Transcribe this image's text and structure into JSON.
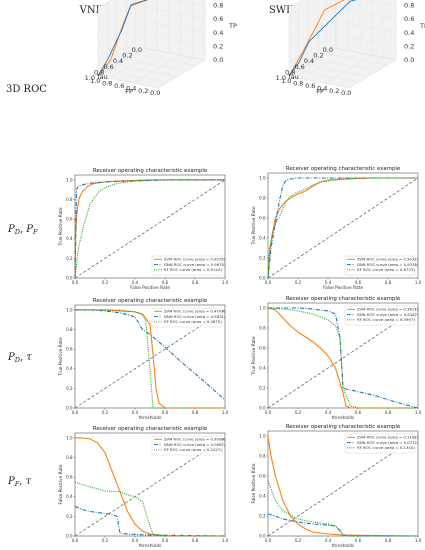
{
  "columns": [
    "VNIR (mean–variance)",
    "SWIR (mean–variance)"
  ],
  "rows": [
    {
      "label": "3D ROC",
      "italic": false
    },
    {
      "label": "P_D, P_F",
      "italic": true
    },
    {
      "label": "P_D, τ",
      "italic": true
    },
    {
      "label": "P_F, τ",
      "italic": true
    }
  ],
  "colors": {
    "svm": "#ff7f0e",
    "dnn": "#1f77b4",
    "rf": "#2ca02c",
    "diag": "#555555"
  },
  "axis_3d": {
    "tau": "Tau",
    "fp": "FP",
    "tp": "TP",
    "ticks": [
      "0.0",
      "0.2",
      "0.4",
      "0.6",
      "0.8",
      "1.0"
    ]
  },
  "ticks": [
    "0.0",
    "0.2",
    "0.4",
    "0.6",
    "0.8",
    "1.0"
  ],
  "chart_data": [
    {
      "id": "vnir_pdpf",
      "type": "line",
      "title": "Receiver operating characteristic example",
      "xlabel": "False Positive Rate",
      "ylabel": "True Positive Rate",
      "xlim": [
        0,
        1
      ],
      "ylim": [
        0,
        1.05
      ],
      "legend": "bottom-right",
      "series": [
        {
          "name": "SVM ROC curve (area = 0.9579)",
          "key": "svm",
          "dash": "solid",
          "x": [
            0,
            0.005,
            0.01,
            0.02,
            0.03,
            0.05,
            0.08,
            0.12,
            0.2,
            0.3,
            0.5,
            0.7,
            1.0
          ],
          "y": [
            0,
            0.45,
            0.62,
            0.75,
            0.82,
            0.88,
            0.93,
            0.96,
            0.98,
            0.99,
            1.0,
            1.0,
            1.0
          ]
        },
        {
          "name": "DNN ROC curve (area = 0.9674)",
          "key": "dnn",
          "dash": "dashdot",
          "x": [
            0,
            0.01,
            0.02,
            0.03,
            0.05,
            0.08,
            0.12,
            0.2,
            0.4,
            0.6,
            1.0
          ],
          "y": [
            0,
            0.9,
            0.93,
            0.94,
            0.95,
            0.96,
            0.97,
            0.98,
            0.99,
            1.0,
            1.0
          ]
        },
        {
          "name": "RF ROC curve (area = 0.9142)",
          "key": "rf",
          "dash": "dotted",
          "x": [
            0,
            0.02,
            0.04,
            0.06,
            0.08,
            0.1,
            0.13,
            0.16,
            0.2,
            0.25,
            0.3,
            0.4,
            0.6,
            1.0
          ],
          "y": [
            0,
            0.28,
            0.42,
            0.55,
            0.65,
            0.75,
            0.82,
            0.88,
            0.92,
            0.95,
            0.97,
            0.99,
            1.0,
            1.0
          ]
        }
      ]
    },
    {
      "id": "swir_pdpf",
      "type": "line",
      "title": "Receiver operating characteristic example",
      "xlabel": "False Positive Rate",
      "ylabel": "True Positive Rate",
      "xlim": [
        0,
        1
      ],
      "ylim": [
        0,
        1.05
      ],
      "legend": "bottom-right",
      "series": [
        {
          "name": "SVM ROC curve (area = 0.9032)",
          "key": "svm",
          "dash": "solid",
          "x": [
            0,
            0.01,
            0.03,
            0.05,
            0.08,
            0.12,
            0.16,
            0.2,
            0.25,
            0.3,
            0.35,
            0.4,
            0.5,
            0.7,
            1.0
          ],
          "y": [
            0,
            0.25,
            0.45,
            0.6,
            0.7,
            0.77,
            0.81,
            0.84,
            0.87,
            0.92,
            0.96,
            0.98,
            0.99,
            1.0,
            1.0
          ]
        },
        {
          "name": "DNN ROC curve (area = 0.9338)",
          "key": "dnn",
          "dash": "dashdot",
          "x": [
            0,
            0.02,
            0.05,
            0.08,
            0.1,
            0.12,
            0.15,
            0.2,
            0.4,
            0.7,
            1.0
          ],
          "y": [
            0,
            0.3,
            0.55,
            0.8,
            0.93,
            0.98,
            0.99,
            1.0,
            1.0,
            1.0,
            1.0
          ]
        },
        {
          "name": "RF ROC curve (area = 0.8773)",
          "key": "rf",
          "dash": "dotted",
          "x": [
            0,
            0.01,
            0.03,
            0.05,
            0.08,
            0.1,
            0.12,
            0.15,
            0.2,
            0.25,
            0.3,
            0.35,
            0.45,
            0.6,
            1.0
          ],
          "y": [
            0,
            0.3,
            0.45,
            0.55,
            0.62,
            0.7,
            0.76,
            0.82,
            0.86,
            0.89,
            0.93,
            0.96,
            0.98,
            1.0,
            1.0
          ]
        }
      ]
    },
    {
      "id": "vnir_pdtau",
      "type": "line",
      "title": "Receiver operating characteristic example",
      "xlabel": "thresholds",
      "ylabel": "True Positive Rate",
      "xlim": [
        0,
        1
      ],
      "ylim": [
        0,
        1.05
      ],
      "legend": "top-right",
      "series": [
        {
          "name": "SVM ROC curve (area = 0.4703)",
          "key": "svm",
          "dash": "solid",
          "x": [
            0,
            0.1,
            0.2,
            0.3,
            0.4,
            0.45,
            0.5,
            0.52,
            0.54,
            0.56,
            0.6,
            0.8,
            1.0
          ],
          "y": [
            1.0,
            1.0,
            1.0,
            0.99,
            0.98,
            0.96,
            0.85,
            0.55,
            0.2,
            0.05,
            0.0,
            0.0,
            0.0
          ]
        },
        {
          "name": "DNN ROC curve (area = 0.5831)",
          "key": "dnn",
          "dash": "dashdot",
          "x": [
            0,
            0.1,
            0.2,
            0.3,
            0.4,
            0.45,
            0.5,
            0.6,
            0.7,
            0.8,
            0.9,
            1.0
          ],
          "y": [
            1.0,
            1.0,
            0.99,
            0.97,
            0.93,
            0.8,
            0.75,
            0.62,
            0.48,
            0.35,
            0.22,
            0.08
          ]
        },
        {
          "name": "RF ROC curve (area = 0.4875)",
          "key": "rf",
          "dash": "dotted",
          "x": [
            0,
            0.1,
            0.2,
            0.3,
            0.4,
            0.45,
            0.47,
            0.5,
            0.52,
            0.6,
            1.0
          ],
          "y": [
            1.0,
            1.0,
            1.0,
            1.0,
            0.98,
            0.95,
            0.9,
            0.4,
            0.0,
            0.0,
            0.0
          ]
        }
      ]
    },
    {
      "id": "swir_pdtau",
      "type": "line",
      "title": "Receiver operating characteristic example",
      "xlabel": "thresholds",
      "ylabel": "True Positive Rate",
      "xlim": [
        0,
        1
      ],
      "ylim": [
        0,
        1.05
      ],
      "legend": "top-right",
      "series": [
        {
          "name": "SVM ROC curve (area = 0.3617)",
          "key": "svm",
          "dash": "solid",
          "x": [
            0,
            0.05,
            0.1,
            0.15,
            0.2,
            0.25,
            0.3,
            0.35,
            0.4,
            0.45,
            0.5,
            0.52,
            0.55,
            0.6,
            1.0
          ],
          "y": [
            1.0,
            0.98,
            0.9,
            0.82,
            0.76,
            0.71,
            0.66,
            0.6,
            0.52,
            0.4,
            0.15,
            0.02,
            0.0,
            0.0,
            0.0
          ]
        },
        {
          "name": "DNN ROC curve (area = 0.5187)",
          "key": "dnn",
          "dash": "dashdot",
          "x": [
            0,
            0.1,
            0.2,
            0.3,
            0.4,
            0.45,
            0.48,
            0.5,
            0.52,
            0.55,
            0.7,
            0.85,
            1.0
          ],
          "y": [
            1.0,
            1.0,
            1.0,
            0.99,
            0.97,
            0.94,
            0.7,
            0.2,
            0.19,
            0.18,
            0.13,
            0.06,
            0.0
          ]
        },
        {
          "name": "RF ROC curve (area = 0.3997)",
          "key": "rf",
          "dash": "dotted",
          "x": [
            0,
            0.1,
            0.2,
            0.3,
            0.4,
            0.45,
            0.48,
            0.5,
            0.55,
            0.6,
            1.0
          ],
          "y": [
            1.0,
            0.99,
            0.97,
            0.94,
            0.88,
            0.82,
            0.7,
            0.2,
            0.02,
            0.0,
            0.0
          ]
        }
      ]
    },
    {
      "id": "vnir_pftau",
      "type": "line",
      "title": "Receiver operating characteristic example",
      "xlabel": "thresholds",
      "ylabel": "False Positive Rate",
      "xlim": [
        0,
        1
      ],
      "ylim": [
        0,
        1.05
      ],
      "legend": "top-right",
      "series": [
        {
          "name": "SVM ROC curve (area = 0.3009)",
          "key": "svm",
          "dash": "solid",
          "x": [
            0,
            0.05,
            0.1,
            0.15,
            0.2,
            0.25,
            0.3,
            0.35,
            0.4,
            0.45,
            0.5,
            0.55,
            0.6,
            1.0
          ],
          "y": [
            1.0,
            1.0,
            0.99,
            0.95,
            0.85,
            0.65,
            0.45,
            0.25,
            0.12,
            0.05,
            0.02,
            0.01,
            0.0,
            0.0
          ]
        },
        {
          "name": "DNN ROC curve (area = 0.0967)",
          "key": "dnn",
          "dash": "dashdot",
          "x": [
            0,
            0.05,
            0.1,
            0.15,
            0.2,
            0.25,
            0.28,
            0.3,
            0.35,
            0.5,
            1.0
          ],
          "y": [
            0.3,
            0.27,
            0.25,
            0.24,
            0.23,
            0.22,
            0.2,
            0.03,
            0.02,
            0.01,
            0.0
          ]
        },
        {
          "name": "RF ROC curve (area = 0.2427)",
          "key": "rf",
          "dash": "dotted",
          "x": [
            0,
            0.1,
            0.2,
            0.3,
            0.35,
            0.4,
            0.42,
            0.45,
            0.5,
            0.52,
            0.6,
            1.0
          ],
          "y": [
            0.55,
            0.5,
            0.46,
            0.45,
            0.42,
            0.4,
            0.38,
            0.35,
            0.1,
            0.02,
            0.0,
            0.0
          ]
        }
      ]
    },
    {
      "id": "swir_pftau",
      "type": "line",
      "title": "Receiver operating characteristic example",
      "xlabel": "thresholds",
      "ylabel": "False Positive Rate",
      "xlim": [
        0,
        1
      ],
      "ylim": [
        0,
        1.05
      ],
      "legend": "top-right",
      "series": [
        {
          "name": "SVM ROC curve (area = 0.1162)",
          "key": "svm",
          "dash": "solid",
          "x": [
            0,
            0.02,
            0.05,
            0.08,
            0.1,
            0.15,
            0.2,
            0.25,
            0.3,
            0.4,
            0.5,
            1.0
          ],
          "y": [
            1.0,
            0.8,
            0.6,
            0.45,
            0.35,
            0.2,
            0.12,
            0.07,
            0.04,
            0.02,
            0.01,
            0.0
          ]
        },
        {
          "name": "DNN ROC curve (area = 0.0772)",
          "key": "dnn",
          "dash": "dashdot",
          "x": [
            0,
            0.05,
            0.1,
            0.2,
            0.3,
            0.4,
            0.45,
            0.48,
            0.5,
            0.55,
            1.0
          ],
          "y": [
            0.22,
            0.2,
            0.17,
            0.14,
            0.12,
            0.11,
            0.1,
            0.05,
            0.01,
            0.0,
            0.0
          ]
        },
        {
          "name": "RF ROC curve (area = 0.1340)",
          "key": "rf",
          "dash": "dotted",
          "x": [
            0,
            0.05,
            0.1,
            0.2,
            0.3,
            0.35,
            0.4,
            0.45,
            0.48,
            0.5,
            0.55,
            1.0
          ],
          "y": [
            0.55,
            0.35,
            0.25,
            0.17,
            0.14,
            0.13,
            0.12,
            0.1,
            0.06,
            0.01,
            0.0,
            0.0
          ]
        }
      ]
    }
  ]
}
